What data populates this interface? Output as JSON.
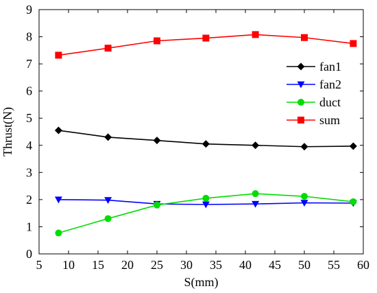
{
  "chart_data": {
    "type": "line",
    "xlabel": "S(mm)",
    "ylabel": "Thrust(N)",
    "xlim": [
      5,
      60
    ],
    "ylim": [
      0,
      9
    ],
    "x_ticks": [
      5,
      10,
      15,
      20,
      25,
      30,
      35,
      40,
      45,
      50,
      55,
      60
    ],
    "y_ticks": [
      0,
      1,
      2,
      3,
      4,
      5,
      6,
      7,
      8,
      9
    ],
    "x": [
      8.3,
      16.7,
      25,
      33.3,
      41.7,
      50,
      58.3
    ],
    "legend_position": "right-middle",
    "grid": false,
    "series": [
      {
        "name": "fan1",
        "color": "#000000",
        "marker": "diamond",
        "values": [
          4.55,
          4.3,
          4.18,
          4.05,
          4.0,
          3.95,
          3.97
        ]
      },
      {
        "name": "fan2",
        "color": "#0000ff",
        "marker": "triangle-down",
        "values": [
          2.0,
          1.98,
          1.84,
          1.82,
          1.84,
          1.88,
          1.87
        ]
      },
      {
        "name": "duct",
        "color": "#00dd00",
        "marker": "circle",
        "values": [
          0.77,
          1.3,
          1.8,
          2.05,
          2.22,
          2.12,
          1.92
        ]
      },
      {
        "name": "sum",
        "color": "#ff0000",
        "marker": "square",
        "values": [
          7.32,
          7.58,
          7.85,
          7.95,
          8.08,
          7.97,
          7.75
        ]
      }
    ]
  }
}
